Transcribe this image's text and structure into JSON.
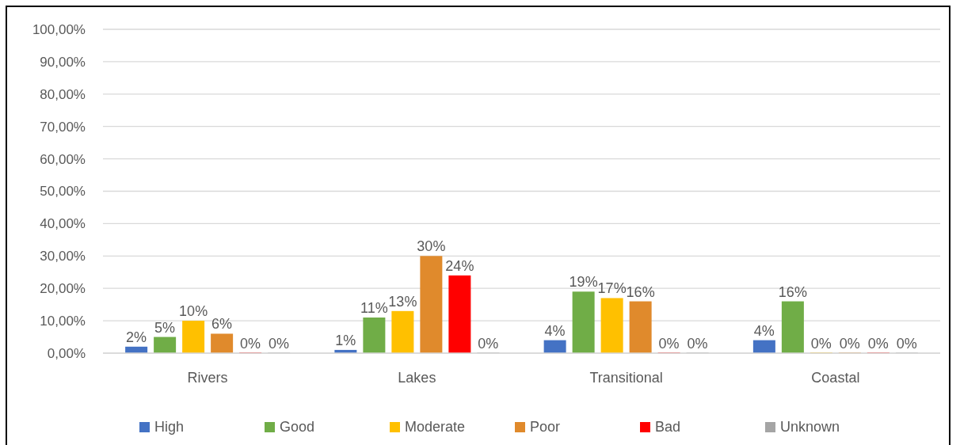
{
  "chart_data": {
    "type": "bar",
    "categories": [
      "Rivers",
      "Lakes",
      "Transitional",
      "Coastal"
    ],
    "series": [
      {
        "name": "High",
        "color": "#4472c4",
        "values": [
          2,
          1,
          4,
          4
        ],
        "value_labels": [
          "2%",
          "1%",
          "4%",
          "4%"
        ]
      },
      {
        "name": "Good",
        "color": "#70ad47",
        "values": [
          5,
          11,
          19,
          16
        ],
        "value_labels": [
          "5%",
          "11%",
          "19%",
          "16%"
        ]
      },
      {
        "name": "Moderate",
        "color": "#ffc000",
        "values": [
          10,
          13,
          17,
          0
        ],
        "value_labels": [
          "10%",
          "13%",
          "17%",
          "0%"
        ]
      },
      {
        "name": "Poor",
        "color": "#e08a2c",
        "values": [
          6,
          30,
          16,
          0
        ],
        "value_labels": [
          "6%",
          "30%",
          "16%",
          "0%"
        ]
      },
      {
        "name": "Bad",
        "color": "#ff0000",
        "values": [
          0,
          24,
          0,
          0
        ],
        "value_labels": [
          "0%",
          "24%",
          "0%",
          "0%"
        ]
      },
      {
        "name": "Unknown",
        "color": "#a5a5a5",
        "values": [
          0,
          0,
          0,
          0
        ],
        "value_labels": [
          "0%",
          "0%",
          "0%",
          "0%"
        ]
      }
    ],
    "ylim": [
      0,
      100
    ],
    "yticks": [
      {
        "value": 0,
        "label": "0,00%"
      },
      {
        "value": 10,
        "label": "10,00%"
      },
      {
        "value": 20,
        "label": "20,00%"
      },
      {
        "value": 30,
        "label": "30,00%"
      },
      {
        "value": 40,
        "label": "40,00%"
      },
      {
        "value": 50,
        "label": "50,00%"
      },
      {
        "value": 60,
        "label": "60,00%"
      },
      {
        "value": 70,
        "label": "70,00%"
      },
      {
        "value": 80,
        "label": "80,00%"
      },
      {
        "value": 90,
        "label": "90,00%"
      },
      {
        "value": 100,
        "label": "100,00%"
      }
    ],
    "grid": "y",
    "legend": "bottom"
  }
}
